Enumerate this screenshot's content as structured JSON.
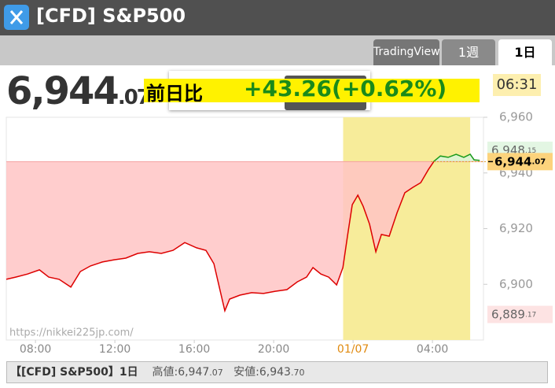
{
  "header": {
    "title": "[CFD] S&P500",
    "tabs": [
      "TradingView",
      "1週",
      "1日"
    ],
    "price": "6,944.07",
    "change_label": "前日比",
    "change": "+43.26(+0.62%)",
    "time": "06:31"
  },
  "chart_data": {
    "type": "line",
    "x": [
      6.53,
      7.0,
      7.6,
      8.2,
      8.67,
      9.19,
      9.78,
      10.26,
      10.77,
      11.37,
      11.96,
      12.55,
      13.15,
      13.74,
      14.34,
      14.93,
      15.52,
      16.12,
      16.59,
      16.99,
      17.31,
      17.54,
      17.78,
      18.3,
      18.89,
      19.49,
      20.08,
      20.67,
      21.19,
      21.66,
      21.98,
      22.38,
      22.77,
      23.17,
      23.49,
      23.72,
      23.96,
      24.24,
      24.51,
      24.83,
      25.15,
      25.43,
      25.82,
      26.22,
      26.61,
      27.01,
      27.41,
      27.8,
      28.08,
      28.4,
      28.79,
      29.19,
      29.58,
      29.9,
      30.1,
      30.38
    ],
    "values": [
      6901.8,
      6902.6,
      6903.7,
      6905.2,
      6902.6,
      6901.8,
      6899.0,
      6904.6,
      6906.6,
      6908.0,
      6908.8,
      6909.4,
      6911.1,
      6911.7,
      6911.1,
      6912.2,
      6915.0,
      6913.1,
      6912.2,
      6907.4,
      6897.5,
      6890.5,
      6894.7,
      6896.1,
      6897.0,
      6896.7,
      6897.5,
      6898.1,
      6900.9,
      6902.6,
      6906.0,
      6903.7,
      6902.6,
      6899.8,
      6906.0,
      6917.3,
      6928.6,
      6932.0,
      6928.0,
      6921.6,
      6911.7,
      6917.9,
      6917.3,
      6925.8,
      6932.9,
      6934.8,
      6936.5,
      6941.3,
      6944.2,
      6946.1,
      6945.6,
      6946.7,
      6945.6,
      6946.7,
      6944.7,
      6944.5
    ],
    "xlim": [
      6.53,
      30.57
    ],
    "ylim": [
      6880,
      6960
    ],
    "xticks": [
      {
        "value": 8,
        "label": "08:00"
      },
      {
        "value": 12,
        "label": "12:00"
      },
      {
        "value": 16,
        "label": "16:00"
      },
      {
        "value": 20,
        "label": "20:00"
      },
      {
        "value": 24,
        "label": "01/07",
        "color": "#e08a10"
      },
      {
        "value": 28,
        "label": "04:00"
      }
    ],
    "yticks": [
      {
        "value": 6900,
        "label": "6,900"
      },
      {
        "value": 6920,
        "label": "6,920"
      },
      {
        "value": 6940,
        "label": "6,940"
      },
      {
        "value": 6960,
        "label": "6,960"
      }
    ],
    "reference": {
      "value": 6944.07,
      "label": "6,944.07"
    },
    "markers": [
      {
        "value": 6948.15,
        "label": "6,948.15",
        "color": "#e3f6e3"
      },
      {
        "value": 6889.17,
        "label": "6,889.17",
        "color": "#fde3e3"
      }
    ],
    "highlight": [
      23.5,
      29.9
    ],
    "colors": {
      "up": "#1a9a1a",
      "down": "#dd0000",
      "fill_up": "#d9f5d9",
      "fill_down": "#ffc4c4",
      "highlight": "#f7ec9a",
      "reference": "#fcd37c"
    },
    "watermark": "https://nikkei225jp.com/",
    "grid": false
  },
  "footer": {
    "title": "【[CFD] S&P500】1日",
    "high_label": "高値:",
    "high": "6,947.07",
    "low_label": "安値:",
    "low": "6,943.70"
  }
}
